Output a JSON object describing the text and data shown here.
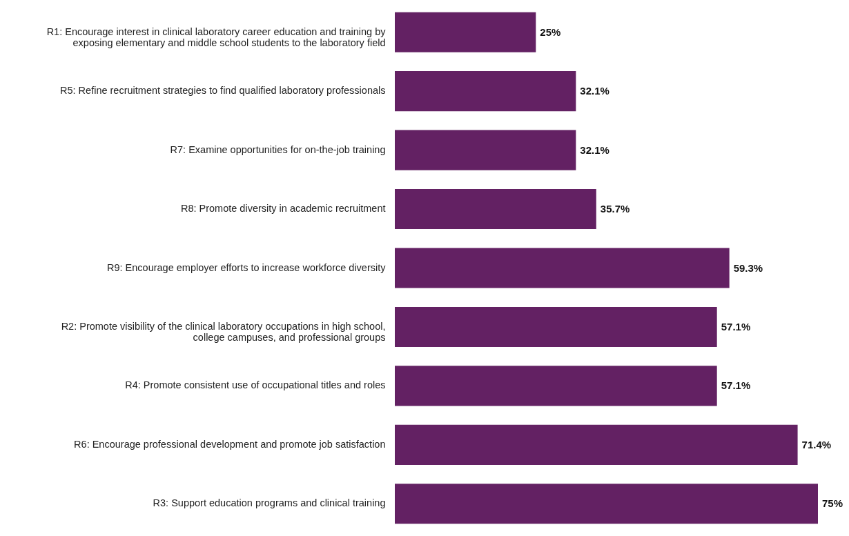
{
  "chart_data": {
    "type": "bar",
    "orientation": "horizontal",
    "data_labels": true,
    "value_labels": [
      "25%",
      "32.1%",
      "32.1%",
      "35.7%",
      "59.3%",
      "57.1%",
      "57.1%",
      "71.4%",
      "75%"
    ],
    "categories": [
      "R1: Encourage interest in clinical laboratory career education and training by exposing elementary and middle school students to the laboratory field",
      "R5: Refine recruitment strategies to find qualified laboratory professionals",
      "R7: Examine opportunities for on-the-job training",
      "R8: Promote diversity in academic recruitment",
      "R9: Encourage employer efforts to increase workforce diversity",
      "R2: Promote visibility of the clinical laboratory occupations in high school, college campuses, and professional groups",
      "R4: Promote consistent use of occupational titles and roles",
      "R6: Encourage professional development and promote job satisfaction",
      "R3: Support education programs and clinical training"
    ],
    "values": [
      25,
      32.1,
      32.1,
      35.7,
      59.3,
      57.1,
      57.1,
      71.4,
      75
    ],
    "color": "#632163"
  }
}
